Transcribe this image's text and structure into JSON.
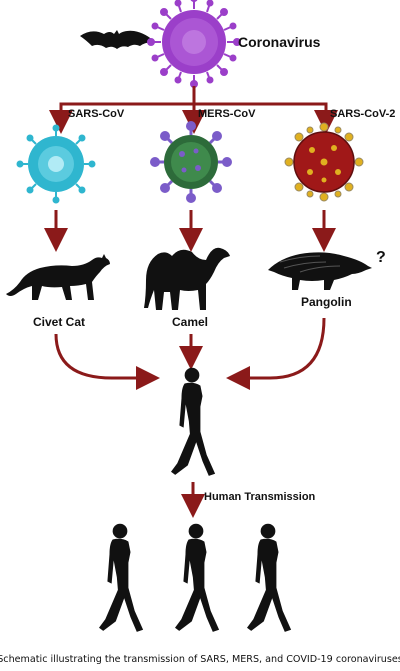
{
  "diagram": {
    "source_label": "Coronavirus",
    "strains": [
      {
        "name": "SARS-CoV",
        "host": "Civet Cat"
      },
      {
        "name": "MERS-CoV",
        "host": "Camel"
      },
      {
        "name": "SARS-CoV-2",
        "host": "Pangolin",
        "host_mark": "?"
      }
    ],
    "human_transmission_label": "Human Transmission",
    "caption": "Schematic illustrating the transmission of SARS, MERS, and COVID-19 coronaviruses",
    "colors": {
      "arrow": "#8b1a1a",
      "virus_main": "#9b3fc9",
      "virus_sars": "#2fb6cf",
      "virus_mers": "#2d6b3a",
      "virus_mers_spike": "#7b5cc9",
      "virus_cov2": "#a01818",
      "virus_cov2_spike": "#e0b020",
      "silhouette": "#111111"
    },
    "icons": [
      "bat-icon",
      "civet-cat-icon",
      "camel-icon",
      "pangolin-icon",
      "human-icon"
    ]
  }
}
